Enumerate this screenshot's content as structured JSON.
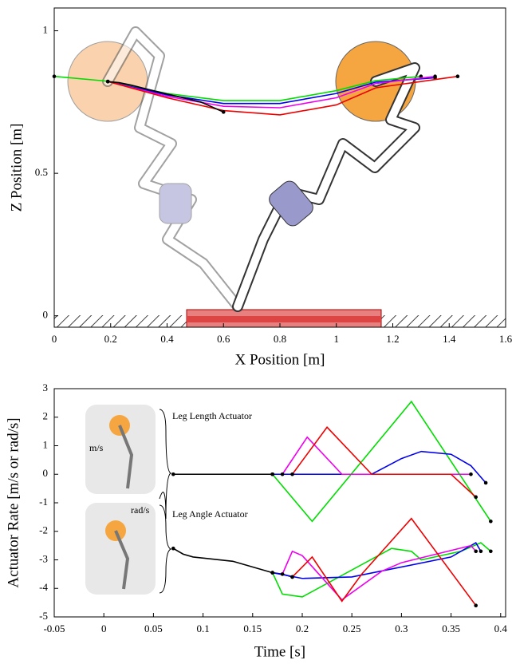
{
  "chart_data": [
    {
      "type": "line",
      "xlabel": "X Position [m]",
      "ylabel": "Z Position [m]",
      "xlim": [
        0,
        1.6
      ],
      "ylim": [
        -0.04,
        1.08
      ],
      "xticks": [
        0,
        0.2,
        0.4,
        0.6,
        0.8,
        1,
        1.2,
        1.4,
        1.6
      ],
      "yticks": [
        0,
        0.5,
        1
      ],
      "series": [
        {
          "color": "#00dd00",
          "x": [
            0,
            0.19,
            0.4,
            0.6,
            0.8,
            1.0,
            1.14,
            1.3
          ],
          "values": [
            0.84,
            0.823,
            0.78,
            0.755,
            0.755,
            0.79,
            0.825,
            0.84
          ]
        },
        {
          "color": "#0000ee",
          "x": [
            0.19,
            0.4,
            0.6,
            0.8,
            1.0,
            1.14,
            1.35
          ],
          "values": [
            0.822,
            0.775,
            0.745,
            0.745,
            0.78,
            0.82,
            0.835
          ]
        },
        {
          "color": "#ee00ee",
          "x": [
            0.19,
            0.4,
            0.6,
            0.8,
            1.0,
            1.14,
            1.35
          ],
          "values": [
            0.822,
            0.77,
            0.735,
            0.73,
            0.765,
            0.815,
            0.84
          ]
        },
        {
          "color": "#ee0000",
          "x": [
            0.19,
            0.4,
            0.6,
            0.8,
            1.0,
            1.14,
            1.43
          ],
          "values": [
            0.822,
            0.765,
            0.72,
            0.705,
            0.74,
            0.8,
            0.84
          ]
        },
        {
          "color": "#000000",
          "x": [
            0.19,
            0.23,
            0.27,
            0.35,
            0.52,
            0.6
          ],
          "values": [
            0.822,
            0.818,
            0.81,
            0.79,
            0.75,
            0.715
          ]
        }
      ]
    },
    {
      "type": "line",
      "xlabel": "Time [s]",
      "ylabel": "Actuator Rate [m/s or rad/s]",
      "xlim": [
        -0.05,
        0.405
      ],
      "ylim": [
        -5,
        3
      ],
      "xticks": [
        -0.05,
        0,
        0.05,
        0.1,
        0.15,
        0.2,
        0.25,
        0.3,
        0.35,
        0.4
      ],
      "yticks": [
        -5,
        -4,
        -3,
        -2,
        -1,
        0,
        1,
        2,
        3
      ],
      "annotations": [
        "Leg Length Actuator",
        "Leg Angle Actuator",
        "m/s",
        "rad/s"
      ],
      "series": [
        {
          "color": "#000000",
          "x": [
            0.07,
            0.08,
            0.09,
            0.17
          ],
          "values": [
            0,
            0,
            0,
            0
          ]
        },
        {
          "color": "#00dd00",
          "x": [
            0.17,
            0.21,
            0.31,
            0.39
          ],
          "values": [
            0,
            -1.65,
            2.55,
            -1.65
          ]
        },
        {
          "color": "#0000ee",
          "x": [
            0.17,
            0.27,
            0.3,
            0.32,
            0.35,
            0.37,
            0.385
          ],
          "values": [
            0,
            0,
            0.55,
            0.8,
            0.7,
            0.3,
            -0.3
          ]
        },
        {
          "color": "#ee00ee",
          "x": [
            0.18,
            0.205,
            0.24,
            0.37
          ],
          "values": [
            0,
            1.3,
            0,
            0
          ]
        },
        {
          "color": "#ee0000",
          "x": [
            0.19,
            0.225,
            0.27,
            0.35,
            0.375
          ],
          "values": [
            0,
            1.65,
            0,
            0,
            -0.8
          ]
        },
        {
          "color": "#000000",
          "x": [
            0.07,
            0.08,
            0.09,
            0.13,
            0.17,
            0.18,
            0.19
          ],
          "values": [
            -2.6,
            -2.8,
            -2.9,
            -3.05,
            -3.45,
            -3.5,
            -3.6
          ]
        },
        {
          "color": "#00dd00",
          "x": [
            0.17,
            0.18,
            0.2,
            0.29,
            0.31,
            0.32,
            0.36,
            0.38,
            0.39
          ],
          "values": [
            -3.45,
            -4.2,
            -4.3,
            -2.6,
            -2.7,
            -3.0,
            -2.7,
            -2.4,
            -2.7
          ]
        },
        {
          "color": "#0000ee",
          "x": [
            0.17,
            0.2,
            0.25,
            0.35,
            0.375,
            0.38
          ],
          "values": [
            -3.45,
            -3.65,
            -3.6,
            -2.9,
            -2.4,
            -2.7
          ]
        },
        {
          "color": "#ee00ee",
          "x": [
            0.18,
            0.19,
            0.2,
            0.24,
            0.28,
            0.3,
            0.37,
            0.375
          ],
          "values": [
            -3.5,
            -2.7,
            -2.85,
            -4.4,
            -3.4,
            -3.1,
            -2.5,
            -2.7
          ]
        },
        {
          "color": "#ee0000",
          "x": [
            0.19,
            0.21,
            0.24,
            0.26,
            0.31,
            0.375
          ],
          "values": [
            -3.6,
            -2.9,
            -4.45,
            -3.5,
            -1.55,
            -4.6
          ]
        }
      ]
    }
  ]
}
